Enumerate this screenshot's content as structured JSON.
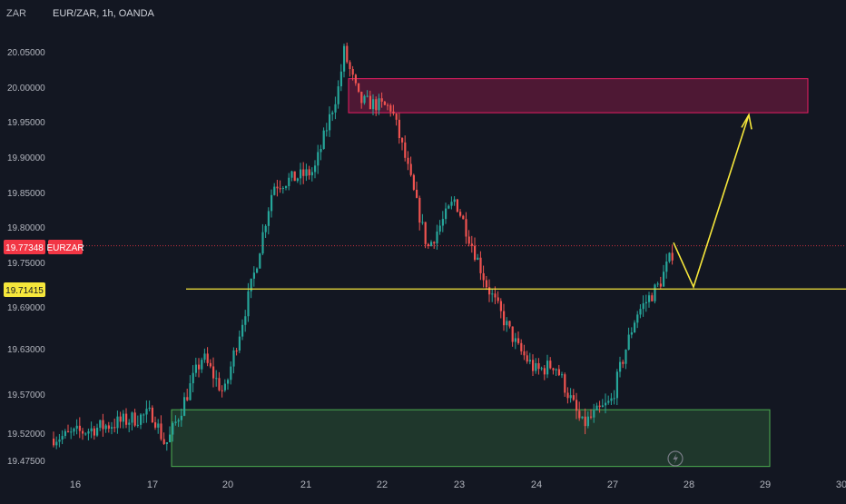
{
  "header": {
    "currency": "ZAR",
    "symbol_line": "EUR/ZAR, 1h, OANDA"
  },
  "badges": {
    "last_price": "19.77348",
    "last_symbol": "EURZAR",
    "level_price": "19.71415"
  },
  "colors": {
    "background": "#131722",
    "up": "#26a69a",
    "down": "#ef5350",
    "resistance_zone": "#e91e63",
    "support_zone": "#4caf50",
    "projection": "#f6e73b",
    "last_price_badge": "#f23645",
    "level_badge": "#f6e73b"
  },
  "chart_data": {
    "type": "candlestick",
    "title": "",
    "instrument": "EUR/ZAR",
    "timeframe": "1h",
    "source": "OANDA",
    "currency": "ZAR",
    "y_ticks": [
      20.05,
      20.0,
      19.95,
      19.9,
      19.85,
      19.8,
      19.75,
      19.69,
      19.63,
      19.57,
      19.52,
      19.475
    ],
    "y_tick_labels": [
      "20.05000",
      "20.00000",
      "19.95000",
      "19.90000",
      "19.85000",
      "19.80000",
      "19.75000",
      "19.69000",
      "19.63000",
      "19.57000",
      "19.52000",
      "19.47500"
    ],
    "x_tick_labels": [
      "16",
      "17",
      "20",
      "21",
      "22",
      "23",
      "24",
      "27",
      "28",
      "29",
      "30"
    ],
    "last_price": 19.77348,
    "horizontal_level": 19.71415,
    "zones": [
      {
        "name": "resistance",
        "from_day": "21",
        "to_day": "29",
        "top": 20.012,
        "bottom": 19.963
      },
      {
        "name": "support",
        "from_day": "17",
        "to_day": "29",
        "top": 19.55,
        "bottom": 19.465
      }
    ],
    "projection_path": [
      {
        "day": "27",
        "price": 19.778
      },
      {
        "day": "28",
        "price": 19.717
      },
      {
        "day": "29",
        "price": 19.96
      }
    ],
    "price_path": [
      {
        "day": "15",
        "price": 19.49
      },
      {
        "day": "16",
        "price": 19.52
      },
      {
        "day": "17",
        "price": 19.545
      },
      {
        "day": "17",
        "price": 19.5
      },
      {
        "day": "20",
        "price": 19.62
      },
      {
        "day": "20",
        "price": 19.57
      },
      {
        "day": "20",
        "price": 19.74
      },
      {
        "day": "20",
        "price": 19.86
      },
      {
        "day": "21",
        "price": 19.88
      },
      {
        "day": "21",
        "price": 20.0
      },
      {
        "day": "21",
        "price": 20.05
      },
      {
        "day": "22",
        "price": 19.98
      },
      {
        "day": "22",
        "price": 19.97
      },
      {
        "day": "22",
        "price": 19.9
      },
      {
        "day": "22",
        "price": 19.77
      },
      {
        "day": "23",
        "price": 19.84
      },
      {
        "day": "23",
        "price": 19.72
      },
      {
        "day": "24",
        "price": 19.63
      },
      {
        "day": "24",
        "price": 19.6
      },
      {
        "day": "24",
        "price": 19.61
      },
      {
        "day": "24",
        "price": 19.53
      },
      {
        "day": "27",
        "price": 19.56
      },
      {
        "day": "27",
        "price": 19.68
      },
      {
        "day": "27",
        "price": 19.72
      },
      {
        "day": "27",
        "price": 19.77
      }
    ]
  }
}
